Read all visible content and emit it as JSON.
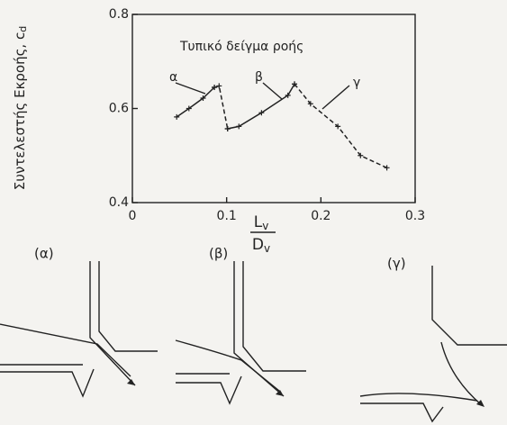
{
  "chart_data": {
    "type": "line",
    "ylabel": "Συντελεστής Εκροής, c",
    "ylabel_sub": "d",
    "xlabel_num": "L",
    "xlabel_num_sub": "v",
    "xlabel_den": "D",
    "xlabel_den_sub": "v",
    "annotations": [
      "Τυπικό δείγμα ροής"
    ],
    "xlim": [
      0,
      0.3
    ],
    "xticks": [
      0,
      0.1,
      0.2,
      0.3
    ],
    "ylim": [
      0.4,
      0.8
    ],
    "yticks": [
      0.4,
      0.6,
      0.8
    ],
    "color": "#222222",
    "marker": "+",
    "series": [
      {
        "name": "α",
        "dashed": false,
        "x": [
          0.047,
          0.06,
          0.075,
          0.087
        ],
        "values": [
          0.582,
          0.6,
          0.622,
          0.645
        ]
      },
      {
        "dashed": true,
        "x": [
          0.087,
          0.092,
          0.101
        ],
        "values": [
          0.645,
          0.648,
          0.557
        ]
      },
      {
        "name": "β",
        "dashed": false,
        "x": [
          0.101,
          0.113,
          0.137,
          0.165,
          0.172
        ],
        "values": [
          0.557,
          0.562,
          0.591,
          0.628,
          0.652
        ]
      },
      {
        "name": "γ",
        "dashed": true,
        "x": [
          0.172,
          0.189,
          0.218,
          0.242,
          0.27
        ],
        "values": [
          0.652,
          0.61,
          0.562,
          0.5,
          0.474
        ]
      }
    ]
  },
  "diagrams": [
    {
      "label": "(α)"
    },
    {
      "label": "(β)"
    },
    {
      "label": "(γ)"
    }
  ]
}
